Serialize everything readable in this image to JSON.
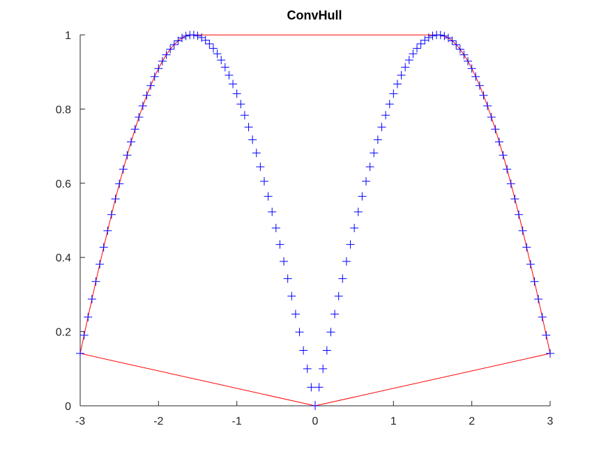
{
  "chart_data": {
    "type": "scatter",
    "title": "ConvHull",
    "xlabel": "",
    "ylabel": "",
    "xlim": [
      -3,
      3
    ],
    "ylim": [
      0,
      1
    ],
    "xticks": [
      -3,
      -2,
      -1,
      0,
      1,
      2,
      3
    ],
    "xtick_labels": [
      "-3",
      "-2",
      "-1",
      "0",
      "1",
      "2",
      "3"
    ],
    "yticks": [
      0,
      0.2,
      0.4,
      0.6,
      0.8,
      1
    ],
    "ytick_labels": [
      "0",
      "0.2",
      "0.4",
      "0.6",
      "0.8",
      "1"
    ],
    "grid": false,
    "legend": "none",
    "series": [
      {
        "kind": "scatter",
        "marker": "+",
        "color": "#0000ff",
        "x": [
          -3,
          -2.95,
          -2.9,
          -2.85,
          -2.8,
          -2.75,
          -2.7,
          -2.65,
          -2.6,
          -2.55,
          -2.5,
          -2.45,
          -2.4,
          -2.35,
          -2.3,
          -2.25,
          -2.2,
          -2.15,
          -2.1,
          -2.05,
          -2,
          -1.95,
          -1.9,
          -1.85,
          -1.8,
          -1.75,
          -1.7,
          -1.65,
          -1.6,
          -1.55,
          -1.5,
          -1.45,
          -1.4,
          -1.35,
          -1.3,
          -1.25,
          -1.2,
          -1.15,
          -1.1,
          -1.05,
          -1,
          -0.95,
          -0.9,
          -0.85,
          -0.8,
          -0.75,
          -0.7,
          -0.65,
          -0.6,
          -0.55,
          -0.5,
          -0.45,
          -0.4,
          -0.35,
          -0.3,
          -0.25,
          -0.2,
          -0.15,
          -0.1,
          -0.05,
          0,
          0.05,
          0.1,
          0.15,
          0.2,
          0.25,
          0.3,
          0.35,
          0.4,
          0.45,
          0.5,
          0.55,
          0.6,
          0.65,
          0.7,
          0.75,
          0.8,
          0.85,
          0.9,
          0.95,
          1,
          1.05,
          1.1,
          1.15,
          1.2,
          1.25,
          1.3,
          1.35,
          1.4,
          1.45,
          1.5,
          1.55,
          1.6,
          1.65,
          1.7,
          1.75,
          1.8,
          1.85,
          1.9,
          1.95,
          2,
          2.05,
          2.1,
          2.15,
          2.2,
          2.25,
          2.3,
          2.35,
          2.4,
          2.45,
          2.5,
          2.55,
          2.6,
          2.65,
          2.7,
          2.75,
          2.8,
          2.85,
          2.9,
          2.95,
          3
        ],
        "y": [
          0.1411,
          0.1904,
          0.2392,
          0.2875,
          0.335,
          0.3817,
          0.4274,
          0.472,
          0.5155,
          0.5577,
          0.5985,
          0.6378,
          0.6755,
          0.7115,
          0.7457,
          0.7781,
          0.8085,
          0.8369,
          0.8632,
          0.8874,
          0.9093,
          0.929,
          0.9463,
          0.9613,
          0.9738,
          0.984,
          0.9917,
          0.9969,
          0.9996,
          0.9998,
          0.9975,
          0.9927,
          0.9854,
          0.9757,
          0.9636,
          0.949,
          0.932,
          0.9128,
          0.8912,
          0.8674,
          0.8415,
          0.8134,
          0.7833,
          0.7513,
          0.7174,
          0.6816,
          0.6442,
          0.6052,
          0.5646,
          0.5227,
          0.4794,
          0.435,
          0.3894,
          0.3429,
          0.2955,
          0.2474,
          0.1987,
          0.1494,
          0.0998,
          0.05,
          0,
          0.05,
          0.0998,
          0.1494,
          0.1987,
          0.2474,
          0.2955,
          0.3429,
          0.3894,
          0.435,
          0.4794,
          0.5227,
          0.5646,
          0.6052,
          0.6442,
          0.6816,
          0.7174,
          0.7513,
          0.7833,
          0.8134,
          0.8415,
          0.8674,
          0.8912,
          0.9128,
          0.932,
          0.949,
          0.9636,
          0.9757,
          0.9854,
          0.9927,
          0.9975,
          0.9998,
          0.9996,
          0.9969,
          0.9917,
          0.984,
          0.9738,
          0.9613,
          0.9463,
          0.929,
          0.9093,
          0.8874,
          0.8632,
          0.8369,
          0.8085,
          0.7781,
          0.7457,
          0.7115,
          0.6755,
          0.6378,
          0.5985,
          0.5577,
          0.5155,
          0.472,
          0.4274,
          0.3817,
          0.335,
          0.2875,
          0.2392,
          0.1904,
          0.1411
        ]
      },
      {
        "kind": "line",
        "color": "#ff0000",
        "x": [
          0,
          3,
          2.95,
          2.9,
          2.85,
          2.8,
          2.75,
          2.7,
          2.65,
          2.6,
          2.55,
          2.5,
          2.45,
          2.4,
          2.35,
          2.3,
          2.25,
          2.2,
          2.15,
          2.1,
          2.05,
          2,
          1.95,
          1.9,
          1.85,
          1.8,
          1.75,
          1.7,
          1.65,
          1.6,
          1.55,
          -1.55,
          -1.6,
          -1.65,
          -1.7,
          -1.75,
          -1.8,
          -1.85,
          -1.9,
          -1.95,
          -2,
          -2.05,
          -2.1,
          -2.15,
          -2.2,
          -2.25,
          -2.3,
          -2.35,
          -2.4,
          -2.45,
          -2.5,
          -2.55,
          -2.6,
          -2.65,
          -2.7,
          -2.75,
          -2.8,
          -2.85,
          -2.9,
          -2.95,
          -3,
          0
        ],
        "y": [
          0,
          0.1411,
          0.1904,
          0.2392,
          0.2875,
          0.335,
          0.3817,
          0.4274,
          0.472,
          0.5155,
          0.5577,
          0.5985,
          0.6378,
          0.6755,
          0.7115,
          0.7457,
          0.7781,
          0.8085,
          0.8369,
          0.8632,
          0.8874,
          0.9093,
          0.929,
          0.9463,
          0.9613,
          0.9738,
          0.984,
          0.9917,
          0.9969,
          0.9996,
          0.9998,
          0.9998,
          0.9996,
          0.9969,
          0.9917,
          0.984,
          0.9738,
          0.9613,
          0.9463,
          0.929,
          0.9093,
          0.8874,
          0.8632,
          0.8369,
          0.8085,
          0.7781,
          0.7457,
          0.7115,
          0.6755,
          0.6378,
          0.5985,
          0.5577,
          0.5155,
          0.472,
          0.4274,
          0.3817,
          0.335,
          0.2875,
          0.2392,
          0.1904,
          0.1411,
          0
        ]
      }
    ]
  },
  "colors": {
    "axis": "#262626",
    "points": "#0000ff",
    "hull": "#ff0000",
    "background": "#ffffff"
  }
}
